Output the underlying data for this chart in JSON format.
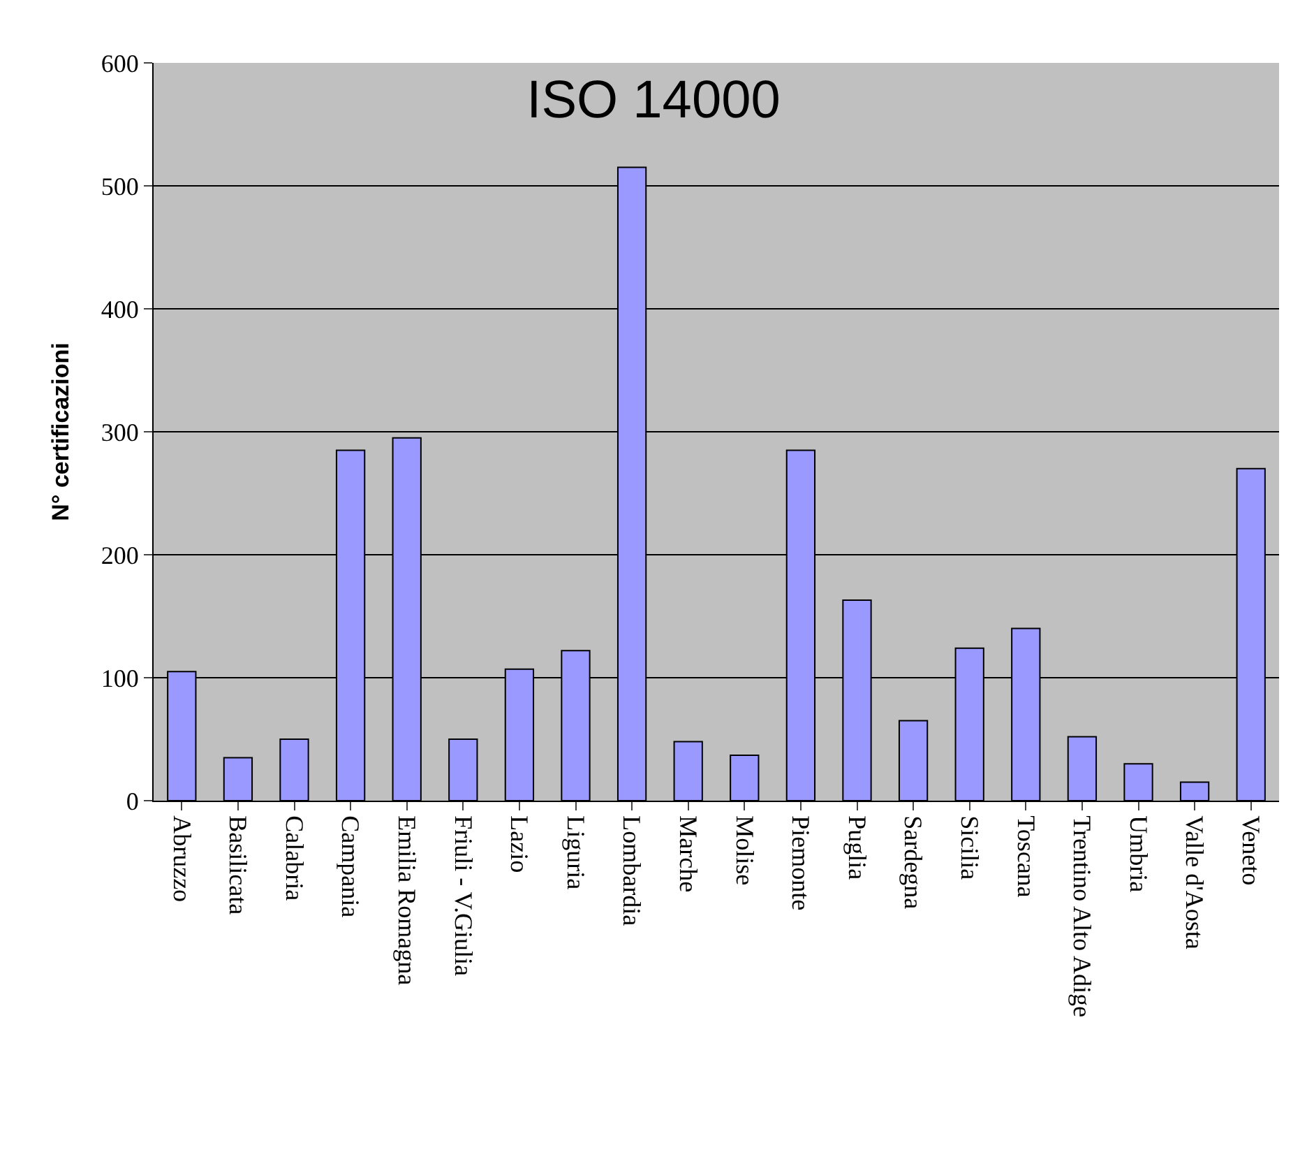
{
  "chart_data": {
    "type": "bar",
    "title": "ISO 14000",
    "ylabel": "N° certificazioni",
    "categories": [
      "Abruzzo",
      "Basilicata",
      "Calabria",
      "Campania",
      "Emilia Romagna",
      "Friuli - V.Giulia",
      "Lazio",
      "Liguria",
      "Lombardia",
      "Marche",
      "Molise",
      "Piemonte",
      "Puglia",
      "Sardegna",
      "Sicilia",
      "Toscana",
      "Trentino Alto Adige",
      "Umbria",
      "Valle d'Aosta",
      "Veneto"
    ],
    "values": [
      105,
      35,
      50,
      285,
      295,
      50,
      107,
      122,
      515,
      48,
      37,
      285,
      163,
      65,
      124,
      140,
      52,
      30,
      15,
      270
    ],
    "color": "#9999ff",
    "ylim": [
      0,
      600
    ],
    "yticks": [
      0,
      100,
      200,
      300,
      400,
      500,
      600
    ],
    "grid": "y"
  }
}
